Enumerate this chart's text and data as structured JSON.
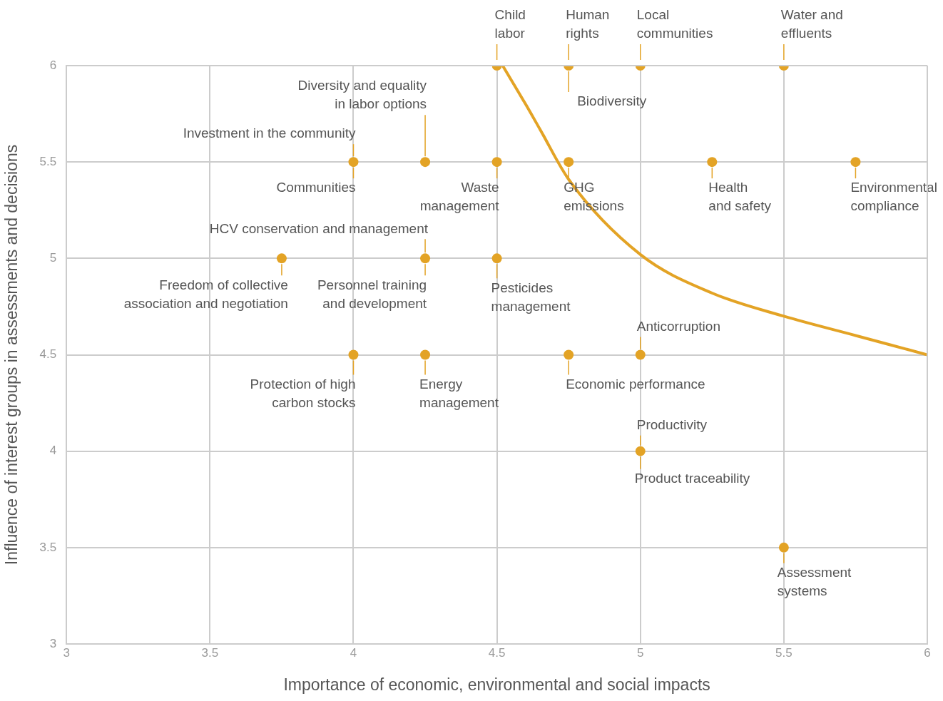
{
  "chart_data": {
    "type": "scatter",
    "xlabel": "Importance of economic, environmental and social impacts",
    "ylabel": "Influence of interest groups in assessments and decisions",
    "xlim": [
      3,
      6
    ],
    "ylim": [
      3,
      6
    ],
    "xticks": [
      3,
      3.5,
      4,
      4.5,
      5,
      5.5,
      6
    ],
    "yticks": [
      3,
      3.5,
      4,
      4.5,
      5,
      5.5,
      6
    ],
    "grid": true,
    "marker": "circle",
    "series": [
      {
        "color": "#e3a325",
        "x": [
          4.5,
          4.75,
          5,
          5.5,
          4,
          4.25,
          4.5,
          4.75,
          5.25,
          5.75,
          3.75,
          4.25,
          4.5,
          4,
          4.25,
          4.75,
          5,
          5,
          5.5
        ],
        "values": [
          6,
          6,
          6,
          6,
          5.5,
          5.5,
          5.5,
          5.5,
          5.5,
          5.5,
          5,
          5,
          5,
          4.5,
          4.5,
          4.5,
          4.5,
          4,
          3.5
        ]
      },
      {
        "type": "line",
        "color": "#e3a325",
        "marker": "none",
        "x": [
          4.52,
          4.6,
          4.65,
          4.75,
          5,
          5.25,
          5.5,
          5.75,
          6
        ],
        "values": [
          6,
          5.8,
          5.67,
          5.41,
          5.02,
          4.82,
          4.7,
          4.6,
          4.5
        ]
      }
    ],
    "annotations": [
      {
        "text": "Child\nlabor",
        "x": 4.5,
        "y": 6
      },
      {
        "text": "Human\nrights",
        "x": 4.75,
        "y": 6
      },
      {
        "text": "Biodiversity",
        "x": 4.75,
        "y": 6
      },
      {
        "text": "Local\ncommunities",
        "x": 5,
        "y": 6
      },
      {
        "text": "Water and\neffluents",
        "x": 5.5,
        "y": 6
      },
      {
        "text": "Investment in the community",
        "x": 4,
        "y": 5.5
      },
      {
        "text": "Communities",
        "x": 4,
        "y": 5.5
      },
      {
        "text": "Diversity and equality\nin labor options",
        "x": 4.25,
        "y": 5.5
      },
      {
        "text": "Waste\nmanagement",
        "x": 4.5,
        "y": 5.5
      },
      {
        "text": "GHG\nemissions",
        "x": 4.75,
        "y": 5.5
      },
      {
        "text": "Health\nand safety",
        "x": 5.25,
        "y": 5.5
      },
      {
        "text": "Environmental\ncompliance",
        "x": 5.75,
        "y": 5.5
      },
      {
        "text": "HCV conservation and management",
        "x": 4.25,
        "y": 5
      },
      {
        "text": "Freedom of collective\nassociation and negotiation",
        "x": 3.75,
        "y": 5
      },
      {
        "text": "Personnel training\nand development",
        "x": 4.25,
        "y": 5
      },
      {
        "text": "Pesticides\nmanagement",
        "x": 4.5,
        "y": 5
      },
      {
        "text": "Protection of high\ncarbon stocks",
        "x": 4,
        "y": 4.5
      },
      {
        "text": "Energy\nmanagement",
        "x": 4.25,
        "y": 4.5
      },
      {
        "text": "Economic performance",
        "x": 4.75,
        "y": 4.5
      },
      {
        "text": "Anticorruption",
        "x": 5,
        "y": 4.5
      },
      {
        "text": "Productivity",
        "x": 5,
        "y": 4
      },
      {
        "text": "Product traceability",
        "x": 5,
        "y": 4
      },
      {
        "text": "Assessment\nsystems",
        "x": 5.5,
        "y": 3.5
      }
    ]
  }
}
